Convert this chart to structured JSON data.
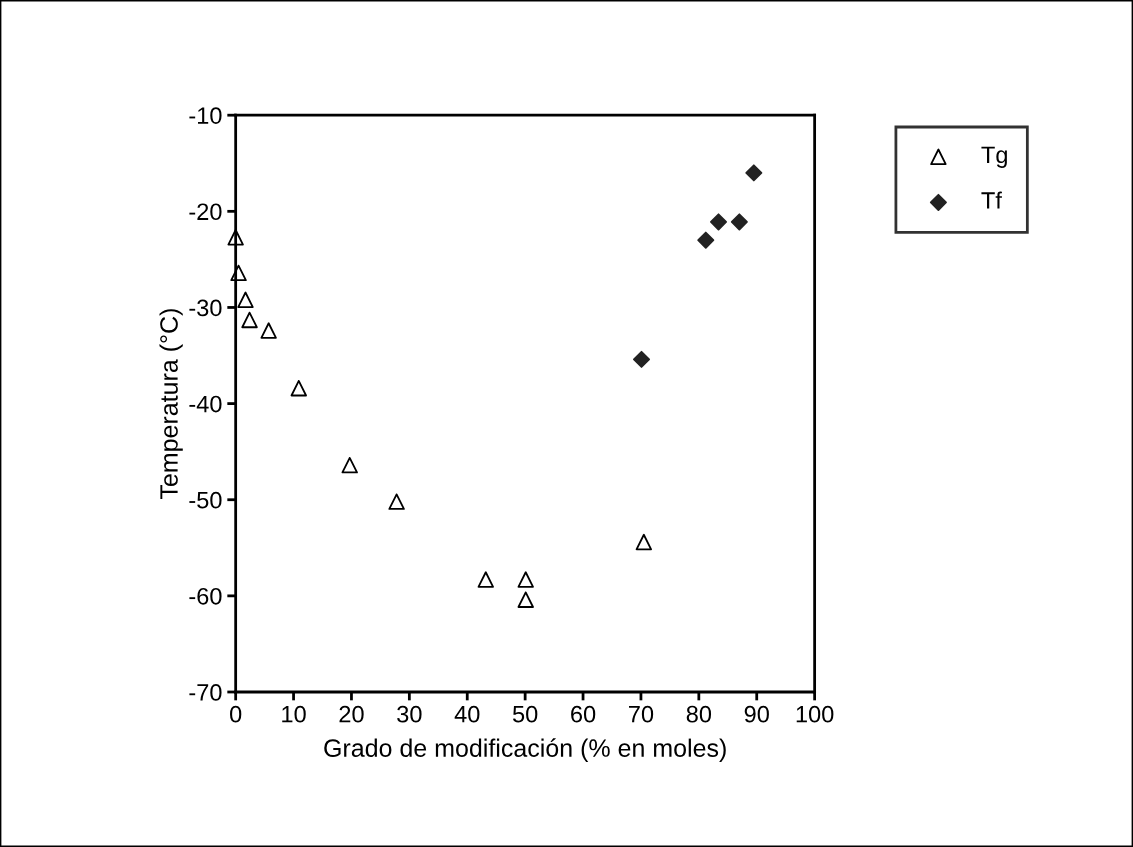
{
  "chart_data": {
    "type": "scatter",
    "xlabel": "Grado de modificación (% en moles)",
    "ylabel": "Temperatura (°C)",
    "xlim": [
      0,
      100
    ],
    "xticks": [
      0,
      10,
      20,
      30,
      40,
      50,
      60,
      70,
      80,
      90,
      100
    ],
    "ylim": [
      -70,
      -10
    ],
    "yticks": [
      -70,
      -60,
      -50,
      -40,
      -30,
      -20,
      -10
    ],
    "grid": false,
    "legend": "top right",
    "series": [
      {
        "name": "Tg",
        "color": "#000000",
        "marker": "triangle",
        "x": [
          0,
          0.5,
          1.7,
          2.4,
          5.7,
          10.9,
          19.7,
          27.8,
          43.2,
          50.1,
          50.1,
          70.5
        ],
        "values": [
          -22.7,
          -26.4,
          -29.2,
          -31.3,
          -32.4,
          -38.4,
          -46.4,
          -50.2,
          -58.3,
          -58.3,
          -60.4,
          -54.4
        ]
      },
      {
        "name": "Tf",
        "color": "#222222",
        "marker": "diamond",
        "x": [
          70.1,
          81.2,
          83.4,
          87.0,
          89.5
        ],
        "values": [
          -35.4,
          -23.0,
          -21.1,
          -21.1,
          -16.0
        ]
      }
    ]
  }
}
